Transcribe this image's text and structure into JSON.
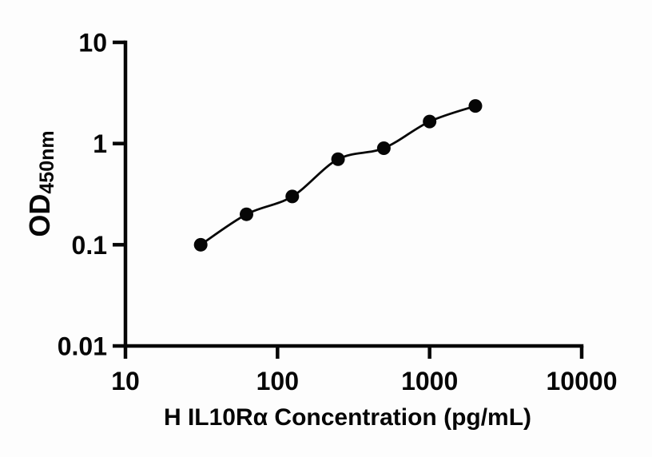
{
  "figure": {
    "background_color": "#fdfdfd",
    "ink_color": "#060606"
  },
  "chart_data": {
    "type": "scatter",
    "title": "",
    "xlabel": "H IL10Rα Concentration (pg/mL)",
    "ylabel_main": "OD",
    "ylabel_sub": "450nm",
    "x_scale": "log",
    "y_scale": "log",
    "xlim": [
      10,
      10000
    ],
    "ylim": [
      0.01,
      10
    ],
    "grid": false,
    "legend": null,
    "x_ticks": [
      {
        "value": 10,
        "label": "10"
      },
      {
        "value": 100,
        "label": "100"
      },
      {
        "value": 1000,
        "label": "1000"
      },
      {
        "value": 10000,
        "label": "10000"
      }
    ],
    "y_ticks": [
      {
        "value": 0.01,
        "label": "0.01"
      },
      {
        "value": 0.1,
        "label": "0.1"
      },
      {
        "value": 1,
        "label": "1"
      },
      {
        "value": 10,
        "label": "10"
      }
    ],
    "series": [
      {
        "name": "standard-curve",
        "marker": "filled-circle",
        "color": "#060606",
        "line": "smooth",
        "points": [
          {
            "x": 31.25,
            "y": 0.1
          },
          {
            "x": 62.5,
            "y": 0.2
          },
          {
            "x": 125,
            "y": 0.3
          },
          {
            "x": 250,
            "y": 0.7
          },
          {
            "x": 500,
            "y": 0.9
          },
          {
            "x": 1000,
            "y": 1.65
          },
          {
            "x": 2000,
            "y": 2.35
          }
        ]
      }
    ]
  }
}
